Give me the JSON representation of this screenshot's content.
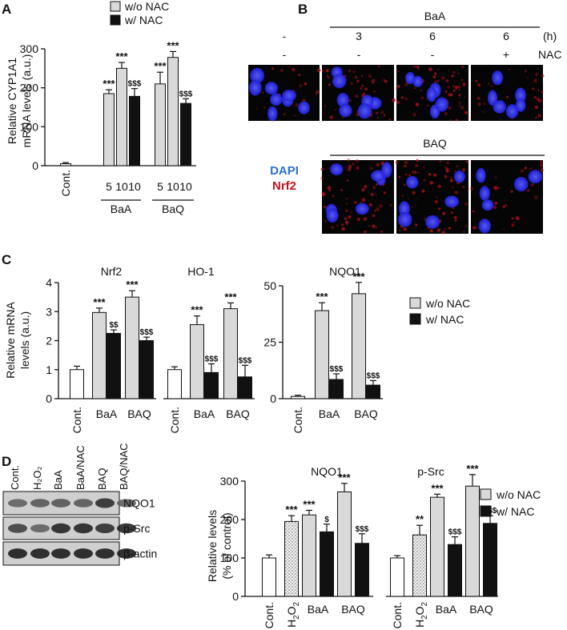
{
  "panels": {
    "a": "A",
    "b": "B",
    "c": "C",
    "d": "D"
  },
  "colors": {
    "wo_nac": "#d9d9d9",
    "w_nac": "#111111",
    "control": "#ffffff",
    "h2o2_pattern": "dotted-grey",
    "dapi": "#2a6fd6",
    "nrf2": "#c0141b"
  },
  "panel_a": {
    "legend": [
      "w/o NAC",
      "w/ NAC"
    ],
    "ylabel_line1": "Relative CYP1A1",
    "ylabel_line2": "mRNA levels (a.u.)",
    "group_labels": [
      "BaA",
      "BaQ"
    ]
  },
  "panel_b": {
    "top_header": "BaA",
    "hours_label": "(h)",
    "nac_label": "NAC",
    "hours": [
      "-",
      "3",
      "6",
      "6"
    ],
    "nac": [
      "-",
      "-",
      "-",
      "+"
    ],
    "bottom_header": "BAQ",
    "stain_dapi": "DAPI",
    "stain_nrf2": "Nrf2"
  },
  "panel_c": {
    "ylabel_line1": "Relative mRNA",
    "ylabel_line2": "levels (a.u.)",
    "legend": [
      "w/o NAC",
      "w/ NAC"
    ]
  },
  "panel_d": {
    "blot_lanes": [
      "Cont.",
      "H₂O₂",
      "BaA",
      "BaA/NAC",
      "BAQ",
      "BAQ/NAC"
    ],
    "blot_rows": [
      "NQO1",
      "p-Src",
      "β-actin"
    ],
    "ylabel_line1": "Relative levels",
    "ylabel_line2": "(% of control)",
    "legend": [
      "w/o NAC",
      "w/ NAC"
    ]
  },
  "chart_data": [
    {
      "id": "A",
      "type": "bar",
      "ylabel": "Relative CYP1A1 mRNA levels (a.u.)",
      "ylim": [
        0,
        300
      ],
      "yticks": [
        0,
        100,
        200,
        300
      ],
      "bars": [
        {
          "x": "Cont.",
          "series": "control",
          "value": 5,
          "err": 3,
          "sig": ""
        },
        {
          "x": "BaA 5",
          "series": "w/o NAC",
          "value": 185,
          "err": 10,
          "sig": "***"
        },
        {
          "x": "BaA 10",
          "series": "w/o NAC",
          "value": 250,
          "err": 15,
          "sig": "***"
        },
        {
          "x": "BaA 10",
          "series": "w/ NAC",
          "value": 178,
          "err": 20,
          "sig": "$$$"
        },
        {
          "x": "BAQ 5",
          "series": "w/o NAC",
          "value": 210,
          "err": 30,
          "sig": "***"
        },
        {
          "x": "BAQ 10",
          "series": "w/o NAC",
          "value": 278,
          "err": 15,
          "sig": "***"
        },
        {
          "x": "BAQ 10",
          "series": "w/ NAC",
          "value": 160,
          "err": 12,
          "sig": "$$$"
        }
      ],
      "tick_labels": [
        "Cont.",
        "5",
        "10",
        "10",
        "5",
        "10",
        "10"
      ],
      "groups": [
        "BaA",
        "BaQ"
      ]
    },
    {
      "id": "C-Nrf2",
      "type": "bar",
      "title": "Nrf2",
      "ylabel": "Relative mRNA levels (a.u.)",
      "ylim": [
        0,
        4
      ],
      "yticks": [
        0,
        1,
        2,
        3,
        4
      ],
      "bars": [
        {
          "x": "Cont.",
          "series": "control",
          "value": 1.0,
          "err": 0.12,
          "sig": ""
        },
        {
          "x": "BaA",
          "series": "w/o NAC",
          "value": 2.97,
          "err": 0.15,
          "sig": "***"
        },
        {
          "x": "BaA",
          "series": "w/ NAC",
          "value": 2.25,
          "err": 0.12,
          "sig": "$$"
        },
        {
          "x": "BAQ",
          "series": "w/o NAC",
          "value": 3.5,
          "err": 0.22,
          "sig": "***"
        },
        {
          "x": "BAQ",
          "series": "w/ NAC",
          "value": 2.0,
          "err": 0.12,
          "sig": "$$$"
        }
      ],
      "tick_labels": [
        "Cont.",
        "BaA",
        "BAQ"
      ]
    },
    {
      "id": "C-HO-1",
      "type": "bar",
      "title": "HO-1",
      "ylim": [
        0,
        4
      ],
      "bars": [
        {
          "x": "Cont.",
          "series": "control",
          "value": 1.0,
          "err": 0.1,
          "sig": ""
        },
        {
          "x": "BaA",
          "series": "w/o NAC",
          "value": 2.55,
          "err": 0.3,
          "sig": "***"
        },
        {
          "x": "BaA",
          "series": "w/ NAC",
          "value": 0.9,
          "err": 0.3,
          "sig": "$$$"
        },
        {
          "x": "BAQ",
          "series": "w/o NAC",
          "value": 3.1,
          "err": 0.2,
          "sig": "***"
        },
        {
          "x": "BAQ",
          "series": "w/ NAC",
          "value": 0.75,
          "err": 0.4,
          "sig": "$$$"
        }
      ],
      "tick_labels": [
        "Cont.",
        "BaA",
        "BAQ"
      ]
    },
    {
      "id": "C-NQO1",
      "type": "bar",
      "title": "NQO1",
      "ylim": [
        0,
        50
      ],
      "yticks": [
        0,
        25,
        50
      ],
      "bars": [
        {
          "x": "Cont.",
          "series": "control",
          "value": 1,
          "err": 0.5,
          "sig": ""
        },
        {
          "x": "BaA",
          "series": "w/o NAC",
          "value": 39,
          "err": 3.5,
          "sig": "***"
        },
        {
          "x": "BaA",
          "series": "w/ NAC",
          "value": 8.5,
          "err": 2.5,
          "sig": "$$$"
        },
        {
          "x": "BAQ",
          "series": "w/o NAC",
          "value": 46.5,
          "err": 5,
          "sig": "***"
        },
        {
          "x": "BAQ",
          "series": "w/ NAC",
          "value": 6,
          "err": 2,
          "sig": "$$$"
        }
      ],
      "tick_labels": [
        "Cont.",
        "BaA",
        "BAQ"
      ]
    },
    {
      "id": "D-NQO1",
      "type": "bar",
      "title": "NQO1",
      "ylabel": "Relative levels (% of control)",
      "ylim": [
        0,
        300
      ],
      "yticks": [
        0,
        100,
        200,
        300
      ],
      "bars": [
        {
          "x": "Cont.",
          "series": "control",
          "value": 100,
          "err": 8,
          "sig": ""
        },
        {
          "x": "H2O2",
          "series": "H2O2",
          "value": 195,
          "err": 15,
          "sig": "***"
        },
        {
          "x": "BaA",
          "series": "w/o NAC",
          "value": 212,
          "err": 12,
          "sig": "***"
        },
        {
          "x": "BaA",
          "series": "w/ NAC",
          "value": 168,
          "err": 20,
          "sig": "$"
        },
        {
          "x": "BAQ",
          "series": "w/o NAC",
          "value": 272,
          "err": 22,
          "sig": "***"
        },
        {
          "x": "BAQ",
          "series": "w/ NAC",
          "value": 138,
          "err": 25,
          "sig": "$$$"
        }
      ],
      "tick_labels": [
        "Cont.",
        "H2O2",
        "BaA",
        "BAQ"
      ]
    },
    {
      "id": "D-p-Src",
      "type": "bar",
      "title": "p-Src",
      "ylim": [
        0,
        300
      ],
      "bars": [
        {
          "x": "Cont.",
          "series": "control",
          "value": 100,
          "err": 6,
          "sig": ""
        },
        {
          "x": "H2O2",
          "series": "H2O2",
          "value": 160,
          "err": 25,
          "sig": "**"
        },
        {
          "x": "BaA",
          "series": "w/o NAC",
          "value": 258,
          "err": 8,
          "sig": "***"
        },
        {
          "x": "BaA",
          "series": "w/ NAC",
          "value": 135,
          "err": 20,
          "sig": "$$$"
        },
        {
          "x": "BAQ",
          "series": "w/o NAC",
          "value": 287,
          "err": 30,
          "sig": "***"
        },
        {
          "x": "BAQ",
          "series": "w/ NAC",
          "value": 190,
          "err": 20,
          "sig": "$$$"
        }
      ],
      "tick_labels": [
        "Cont.",
        "H2O2",
        "BaA",
        "BAQ"
      ]
    }
  ]
}
